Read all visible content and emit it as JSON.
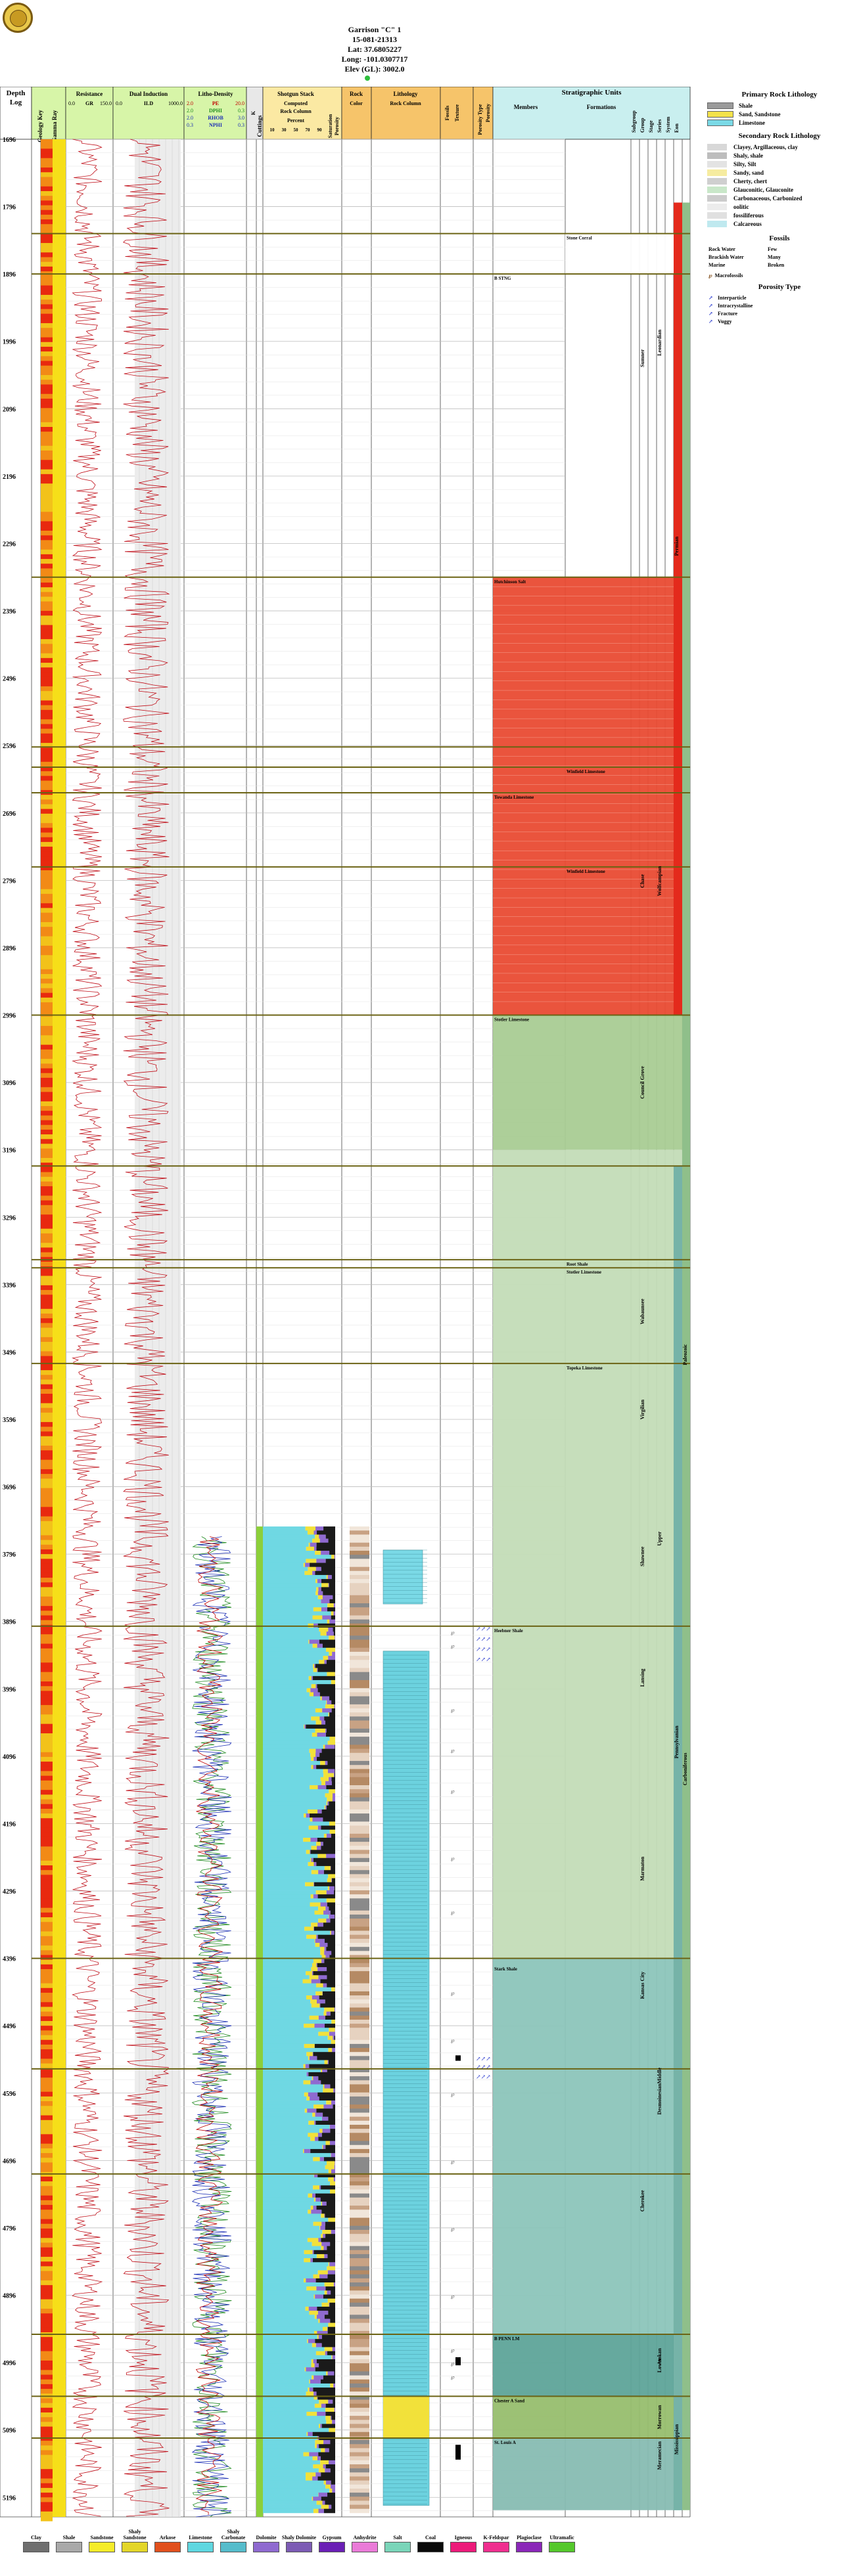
{
  "header": {
    "well_name": "Garrison \"C\" 1",
    "api": "15-081-21313",
    "lat": "Lat: 37.6805227",
    "long": "Long: -101.0307717",
    "elev": "Elev (GL): 3002.0"
  },
  "columns": {
    "depth": "Depth",
    "log": "Log",
    "geology_key": "Geology Key",
    "gamma_ray": "Gamma Ray",
    "resistance": "Resistance",
    "res_min": "0.0",
    "res_curve": "GR",
    "res_max": "150.0",
    "dual_induction": "Dual Induction",
    "ind_min": "0.0",
    "ind_curve": "ILD",
    "ind_max": "1000.0",
    "litho_density": "Litho-Density",
    "ld_curves": [
      {
        "min": "2.0",
        "name": "PE",
        "max": "20.0",
        "color": "#c00000"
      },
      {
        "min": "2.0",
        "name": "DPHI",
        "max": "0.3",
        "color": "#1e8a1e"
      },
      {
        "min": "2.0",
        "name": "RHOB",
        "max": "3.0",
        "color": "#1c2fb5"
      },
      {
        "min": "0.3",
        "name": "NPHI",
        "max": "0.3",
        "color": "#1c2fb5"
      }
    ],
    "k": "K",
    "cuttings": "Cuttings",
    "shotgun": "Shotgun Stack",
    "computed": "Computed",
    "rock_column": "Rock Column",
    "percent": "Percent",
    "percent_ticks": [
      "10",
      "20",
      "30",
      "40",
      "50",
      "60",
      "70",
      "80",
      "90"
    ],
    "saturation": "Saturation",
    "porosity": "Porosity",
    "rock": "Rock",
    "color": "Color",
    "lithology": "Lithology",
    "rock_column2": "Rock Column",
    "fossils": "Fossils",
    "texture": "Texture",
    "porosity_type": "Porosity Type",
    "porosity2": "Porosity",
    "strat_units": "Stratigraphic Units",
    "members": "Members",
    "formations": "Formations",
    "subgroup": "Subgroup",
    "group": "Group",
    "stage": "Stage",
    "series": "Series",
    "system": "System",
    "eon": "Eon"
  },
  "depth_labels": [
    "1696",
    "1796",
    "1896",
    "1996",
    "2096",
    "2196",
    "2296",
    "2396",
    "2496",
    "2596",
    "2696",
    "2796",
    "2896",
    "2996",
    "3096",
    "3196",
    "3296",
    "3396",
    "3496",
    "3596",
    "3696",
    "3796",
    "3896",
    "3996",
    "4096",
    "4196",
    "4296",
    "4396",
    "4496",
    "4596",
    "4696",
    "4796",
    "4896",
    "4996",
    "5096",
    "5196"
  ],
  "members": [
    {
      "name": "Stone Corral",
      "depth": 1836
    },
    {
      "name": "B STNG",
      "depth": 1896
    },
    {
      "name": "Hutchinson Salt",
      "depth": 2346
    },
    {
      "name": "Winfield Limestone",
      "depth": 2628
    },
    {
      "name": "Towanda Limestone",
      "depth": 2666
    },
    {
      "name": "Winfield Limestone",
      "depth": 2776
    },
    {
      "name": "Stotler Limestone",
      "depth": 2996
    },
    {
      "name": "Root Shale",
      "depth": 3359
    },
    {
      "name": "Stotler Limestone",
      "depth": 3371
    },
    {
      "name": "Topeka Limestone",
      "depth": 3513
    },
    {
      "name": "Heebner Shale",
      "depth": 3903
    },
    {
      "name": "Stark Shale",
      "depth": 4405
    },
    {
      "name": "B PENN LM",
      "depth": 4954
    },
    {
      "name": "Chester A Sand",
      "depth": 5046
    },
    {
      "name": "St. Louis A",
      "depth": 5108
    }
  ],
  "subgroups": [
    {
      "name": "Sumner",
      "top": 1696,
      "bottom": 2346
    },
    {
      "name": "Chase",
      "top": 2598,
      "bottom": 2996
    },
    {
      "name": "Council Grove",
      "top": 2996,
      "bottom": 3196
    },
    {
      "name": "Wabaunsee",
      "top": 3359,
      "bottom": 3513
    },
    {
      "name": "Shawnee",
      "top": 3696,
      "bottom": 3903
    },
    {
      "name": "Lansing",
      "top": 3903,
      "bottom": 4056
    },
    {
      "name": "Marmaton",
      "top": 4130,
      "bottom": 4396
    },
    {
      "name": "Kansas City",
      "top": 4396,
      "bottom": 4476
    },
    {
      "name": "Cherokee",
      "top": 4716,
      "bottom": 4796
    },
    {
      "name": "Virgilian",
      "top": 3513,
      "bottom": 3650
    }
  ],
  "stages": [
    {
      "name": "Leonardian",
      "top": 1896,
      "bottom": 2100
    },
    {
      "name": "Wolfcampian",
      "top": 2598,
      "bottom": 2996
    },
    {
      "name": "Desmoinesian",
      "top": 4560,
      "bottom": 4650
    },
    {
      "name": "Atokan",
      "top": 4954,
      "bottom": 5020
    }
  ],
  "series": [
    {
      "name": "Upper",
      "top": 3696,
      "bottom": 3850
    },
    {
      "name": "Middle",
      "top": 4520,
      "bottom": 4620
    },
    {
      "name": "Lower",
      "top": 4954,
      "bottom": 5046
    },
    {
      "name": "Morrowan",
      "top": 5046,
      "bottom": 5108
    },
    {
      "name": "Meramecian",
      "top": 5108,
      "bottom": 5160
    }
  ],
  "systems": [
    {
      "name": "Permian",
      "top": 2100,
      "bottom": 2500
    },
    {
      "name": "Pennsylvanian",
      "top": 3930,
      "bottom": 4220
    },
    {
      "name": "Mississippian",
      "top": 5020,
      "bottom": 5200
    }
  ],
  "eons": [
    {
      "name": "Paleozoic",
      "top": 3300,
      "bottom": 3700
    },
    {
      "name": "Carboniferous",
      "top": 3930,
      "bottom": 4300
    }
  ],
  "legend": {
    "primary_title": "Primary Rock Lithology",
    "primary": [
      {
        "name": "Shale",
        "color": "#9a9a9a"
      },
      {
        "name": "Sand, Sandstone",
        "color": "#f3e24a"
      },
      {
        "name": "Limestone",
        "color": "#7ad9e6"
      }
    ],
    "secondary_title": "Secondary Rock Lithology",
    "secondary": [
      {
        "name": "Clayey, Argillaceous, clay",
        "color": "#d8d8d8"
      },
      {
        "name": "Shaly, shale",
        "color": "#bdbdbd"
      },
      {
        "name": "Silty, Silt",
        "color": "#e3e3e3"
      },
      {
        "name": "Sandy, sand",
        "color": "#f6eca0"
      },
      {
        "name": "Cherty, chert",
        "color": "#cfcfcf"
      },
      {
        "name": "Glauconitic, Glauconite",
        "color": "#c9e7c9"
      },
      {
        "name": "Carbonaceous, Carbonized",
        "color": "#cccccc"
      },
      {
        "name": "oolitic",
        "color": "#ececec"
      },
      {
        "name": "fossiliferous",
        "color": "#e0e0e0"
      },
      {
        "name": "Calcareous",
        "color": "#bfe9ef"
      }
    ],
    "fossils_title": "Fossils",
    "fossils": [
      [
        "Rock Water",
        "Few"
      ],
      [
        "Brackish Water",
        "Many"
      ],
      [
        "Marine",
        "Broken"
      ]
    ],
    "macrofossils": "Macrofossils",
    "porosity_title": "Porosity Type",
    "porosity": [
      "Interparticle",
      "Intracrystalline",
      "Fracture",
      "Vuggy"
    ]
  },
  "bottom_legend": [
    {
      "name": "Clay",
      "color": "#6f6f6f"
    },
    {
      "name": "Shale",
      "color": "#a9a9a9"
    },
    {
      "name": "Sandstone",
      "color": "#f5ec2a"
    },
    {
      "name": "Shaly Sandstone",
      "color": "#e3d62a"
    },
    {
      "name": "Arkose",
      "color": "#e1501d"
    },
    {
      "name": "Limestone",
      "color": "#5fd7e0"
    },
    {
      "name": "Shaly Carbonate",
      "color": "#56bccb"
    },
    {
      "name": "Dolomite",
      "color": "#8f6ad0"
    },
    {
      "name": "Shaly Dolomite",
      "color": "#7c5bb4"
    },
    {
      "name": "Gypsum",
      "color": "#6a1fb5"
    },
    {
      "name": "Anhydrite",
      "color": "#ea7bd8"
    },
    {
      "name": "Salt",
      "color": "#7ad5b9"
    },
    {
      "name": "Coal",
      "color": "#0a0a0a"
    },
    {
      "name": "Igneous",
      "color": "#ec1b7a"
    },
    {
      "name": "K-Feldspar",
      "color": "#ef2f8f"
    },
    {
      "name": "Plagioclase",
      "color": "#8a27b8"
    },
    {
      "name": "Ultramafic",
      "color": "#55c82c"
    }
  ]
}
